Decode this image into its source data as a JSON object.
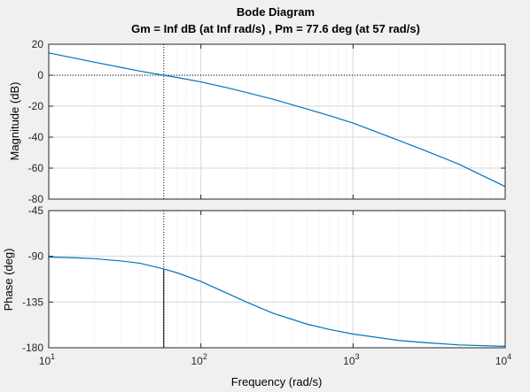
{
  "chart_data": {
    "type": "line",
    "title": "Bode Diagram",
    "subtitle": "Gm = Inf dB (at Inf rad/s) ,  Pm = 77.6 deg (at 57 rad/s)",
    "xlabel": "Frequency  (rad/s)",
    "x_scale": "log",
    "xlim": [
      10,
      10000
    ],
    "x_ticks": [
      {
        "base": "10",
        "exp": "1"
      },
      {
        "base": "10",
        "exp": "2"
      },
      {
        "base": "10",
        "exp": "3"
      },
      {
        "base": "10",
        "exp": "4"
      }
    ],
    "grid": true,
    "crossover_frequency": 57,
    "panels": [
      {
        "name": "magnitude",
        "ylabel": "Magnitude (dB)",
        "ylim": [
          -80,
          20
        ],
        "yticks": [
          20,
          0,
          -20,
          -40,
          -60,
          -80
        ],
        "reference_level": 0,
        "series": [
          {
            "x": [
              10,
              15,
              20,
              30,
              40,
              57,
              70,
              100,
              150,
              200,
              300,
              500,
              700,
              1000,
              2000,
              3000,
              5000,
              10000
            ],
            "y": [
              14.4,
              10.9,
              8.4,
              5.0,
              2.6,
              0.0,
              -1.5,
              -4.3,
              -8.2,
              -11.2,
              -15.6,
              -21.9,
              -26.1,
              -30.9,
              -42.1,
              -48.8,
              -57.6,
              -71.9
            ]
          }
        ]
      },
      {
        "name": "phase",
        "ylabel": "Phase (deg)",
        "ylim": [
          -180,
          -45
        ],
        "yticks": [
          -45,
          -90,
          -135,
          -180
        ],
        "margin_marker": {
          "x": 57,
          "from": -180,
          "to": -102.4
        },
        "series": [
          {
            "x": [
              10,
              15,
              20,
              30,
              40,
              57,
              70,
              100,
              150,
              200,
              300,
              500,
              700,
              1000,
              2000,
              3000,
              5000,
              10000
            ],
            "y": [
              -90.7,
              -91.5,
              -92.3,
              -94.6,
              -96.9,
              -102.4,
              -106.3,
              -114.7,
              -126.6,
              -135.1,
              -146.2,
              -156.8,
              -162.0,
              -166.5,
              -172.8,
              -175.0,
              -177.2,
              -178.6
            ]
          }
        ]
      }
    ]
  }
}
